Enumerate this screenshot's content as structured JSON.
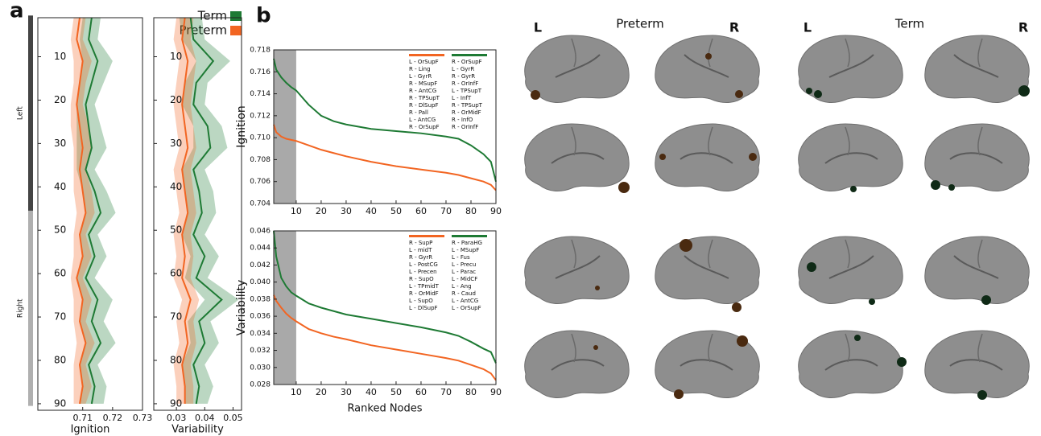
{
  "panel_labels": [
    "a",
    "b"
  ],
  "brains": {
    "groups": [
      {
        "title": "Preterm",
        "left": "L",
        "right": "R",
        "color": "#4a2a10"
      },
      {
        "title": "Term",
        "left": "L",
        "right": "R",
        "color": "#0f2a16"
      }
    ]
  },
  "chart_data": [
    {
      "type": "line",
      "orientation": "vertical",
      "xlabel": "Ignition",
      "y": [
        1,
        6,
        11,
        16,
        21,
        26,
        31,
        36,
        41,
        46,
        51,
        56,
        61,
        66,
        71,
        76,
        81,
        86,
        90
      ],
      "xlim": [
        0.695,
        0.73
      ],
      "xticks": [
        0.71,
        0.72,
        0.73
      ],
      "ylim": [
        91.5,
        1
      ],
      "yticks": [
        10,
        20,
        30,
        40,
        50,
        60,
        70,
        80,
        90
      ],
      "hemispheres": [
        {
          "label": "Left",
          "from": 1,
          "to": 45,
          "color": "#444444"
        },
        {
          "label": "Right",
          "from": 46,
          "to": 90,
          "color": "#b0b0b0"
        }
      ],
      "series": [
        {
          "name": "Term",
          "color": "#1e7a34",
          "values": [
            0.713,
            0.712,
            0.715,
            0.713,
            0.711,
            0.712,
            0.713,
            0.711,
            0.714,
            0.716,
            0.712,
            0.714,
            0.711,
            0.715,
            0.713,
            0.716,
            0.712,
            0.714,
            0.713
          ],
          "spread": [
            0.003,
            0.003,
            0.005,
            0.004,
            0.003,
            0.004,
            0.005,
            0.003,
            0.004,
            0.005,
            0.003,
            0.004,
            0.003,
            0.005,
            0.004,
            0.005,
            0.003,
            0.004,
            0.004
          ]
        },
        {
          "name": "Preterm",
          "color": "#f26522",
          "values": [
            0.709,
            0.708,
            0.71,
            0.709,
            0.708,
            0.709,
            0.71,
            0.709,
            0.71,
            0.711,
            0.709,
            0.71,
            0.708,
            0.71,
            0.709,
            0.711,
            0.709,
            0.71,
            0.709
          ],
          "spread": [
            0.002,
            0.002,
            0.003,
            0.002,
            0.002,
            0.003,
            0.003,
            0.002,
            0.003,
            0.003,
            0.002,
            0.003,
            0.002,
            0.003,
            0.002,
            0.003,
            0.002,
            0.003,
            0.002
          ]
        }
      ]
    },
    {
      "type": "line",
      "orientation": "vertical",
      "xlabel": "Variability",
      "y": [
        1,
        6,
        11,
        16,
        21,
        26,
        31,
        36,
        41,
        46,
        51,
        56,
        61,
        66,
        71,
        76,
        81,
        86,
        90
      ],
      "xlim": [
        0.022,
        0.053
      ],
      "xticks": [
        0.03,
        0.04,
        0.05
      ],
      "ylim": [
        91.5,
        1
      ],
      "yticks": [
        10,
        20,
        30,
        40,
        50,
        60,
        70,
        80,
        90
      ],
      "series": [
        {
          "color": "#1e7a34",
          "values": [
            0.035,
            0.036,
            0.043,
            0.037,
            0.036,
            0.041,
            0.042,
            0.036,
            0.038,
            0.039,
            0.036,
            0.04,
            0.037,
            0.046,
            0.038,
            0.04,
            0.036,
            0.038,
            0.037
          ],
          "spread": [
            0.004,
            0.004,
            0.006,
            0.004,
            0.004,
            0.005,
            0.006,
            0.004,
            0.005,
            0.005,
            0.004,
            0.005,
            0.004,
            0.006,
            0.004,
            0.005,
            0.004,
            0.005,
            0.004
          ]
        },
        {
          "color": "#f26522",
          "values": [
            0.033,
            0.032,
            0.034,
            0.033,
            0.032,
            0.033,
            0.034,
            0.032,
            0.033,
            0.034,
            0.032,
            0.033,
            0.032,
            0.035,
            0.033,
            0.034,
            0.032,
            0.033,
            0.033
          ],
          "spread": [
            0.003,
            0.003,
            0.003,
            0.003,
            0.003,
            0.003,
            0.003,
            0.003,
            0.003,
            0.003,
            0.003,
            0.003,
            0.003,
            0.003,
            0.003,
            0.003,
            0.003,
            0.003,
            0.003
          ]
        }
      ]
    },
    {
      "type": "line",
      "ylabel": "Ignition",
      "x": [
        1,
        2,
        4,
        6,
        8,
        10,
        15,
        20,
        25,
        30,
        40,
        50,
        60,
        70,
        75,
        80,
        85,
        88,
        90
      ],
      "xlim": [
        1,
        90
      ],
      "xticks": [
        10,
        20,
        30,
        40,
        50,
        60,
        70,
        80,
        90
      ],
      "ylim": [
        0.704,
        0.718
      ],
      "yticks": [
        0.704,
        0.706,
        0.708,
        {
          "value": 0.71,
          "label": "0.710"
        },
        0.712,
        0.714,
        0.716,
        0.718
      ],
      "highlight": [
        1,
        10
      ],
      "series": [
        {
          "color": "#f26522",
          "values": [
            0.7112,
            0.7105,
            0.7101,
            0.7099,
            0.7098,
            0.7097,
            0.7093,
            0.7089,
            0.7086,
            0.7083,
            0.7078,
            0.7074,
            0.7071,
            0.7068,
            0.7066,
            0.7063,
            0.706,
            0.7057,
            0.7052
          ]
        },
        {
          "color": "#1e7a34",
          "values": [
            0.7172,
            0.7162,
            0.7155,
            0.715,
            0.7146,
            0.7143,
            0.713,
            0.712,
            0.7115,
            0.7112,
            0.7108,
            0.7106,
            0.7104,
            0.7101,
            0.7099,
            0.7093,
            0.7085,
            0.7078,
            0.706
          ]
        }
      ],
      "legend_lists": [
        {
          "color": "#f26522",
          "items": [
            "L - OrSupF",
            "R - Ling",
            "L - GyrR",
            "R - MSupF",
            "R - AntCG",
            "R - TPSupT",
            "R - DlSupF",
            "R - Pall",
            "L - AntCG",
            "R - OrSupF"
          ]
        },
        {
          "color": "#1e7a34",
          "items": [
            "R - OrSupF",
            "L - GyrR",
            "R - GyrR",
            "R - OrInfF",
            "L - TPSupT",
            "L - InfT",
            "R - TPSupT",
            "R - OrMidF",
            "R - InfO",
            "R - OrInfF"
          ]
        }
      ]
    },
    {
      "type": "line",
      "ylabel": "Variability",
      "xlabel": "Ranked Nodes",
      "x": [
        1,
        2,
        4,
        6,
        8,
        10,
        15,
        20,
        25,
        30,
        40,
        50,
        60,
        70,
        75,
        80,
        85,
        88,
        90
      ],
      "xlim": [
        1,
        90
      ],
      "xticks": [
        10,
        20,
        30,
        40,
        50,
        60,
        70,
        80,
        90
      ],
      "ylim": [
        0.028,
        0.046
      ],
      "yticks": [
        0.028,
        {
          "value": 0.03,
          "label": "0.030"
        },
        0.032,
        0.034,
        0.036,
        0.038,
        {
          "value": 0.04,
          "label": "0.040"
        },
        0.042,
        0.044,
        0.046
      ],
      "highlight": [
        1,
        10
      ],
      "series": [
        {
          "color": "#f26522",
          "values": [
            0.0385,
            0.0378,
            0.037,
            0.0363,
            0.0358,
            0.0354,
            0.0345,
            0.034,
            0.0336,
            0.0333,
            0.0326,
            0.0321,
            0.0316,
            0.0311,
            0.0308,
            0.0303,
            0.0298,
            0.0293,
            0.0285
          ]
        },
        {
          "color": "#1e7a34",
          "values": [
            0.046,
            0.043,
            0.0405,
            0.0395,
            0.0388,
            0.0384,
            0.0375,
            0.037,
            0.0366,
            0.0362,
            0.0357,
            0.0352,
            0.0347,
            0.0341,
            0.0337,
            0.033,
            0.0322,
            0.0318,
            0.0305
          ]
        }
      ],
      "legend_lists": [
        {
          "color": "#f26522",
          "items": [
            "R - SupP",
            "L - midT",
            "R - GyrR",
            "L - PostCG",
            "L - Precen",
            "R - SupO",
            "L - TPmidT",
            "R - OrMidF",
            "L - SupO",
            "L - DlSupF"
          ]
        },
        {
          "color": "#1e7a34",
          "items": [
            "R - ParaHG",
            "L - MSupF",
            "L - Fus",
            "L - Precu",
            "L - Parac",
            "L - MidCF",
            "L - Ang",
            "R - Caud",
            "L - AntCG",
            "L - OrSupF"
          ]
        }
      ]
    }
  ]
}
